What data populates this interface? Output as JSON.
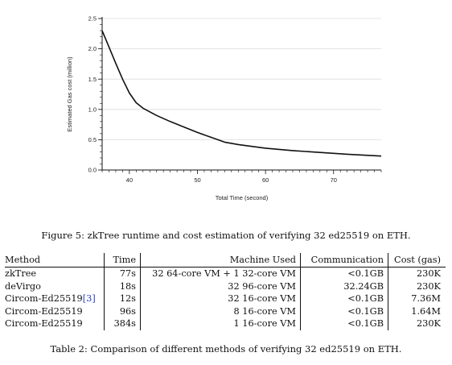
{
  "figure": {
    "caption": "Figure 5: zkTree runtime and cost estimation of verifying 32 ed25519 on ETH."
  },
  "chart_data": {
    "type": "line",
    "xlabel": "Total Time (second)",
    "ylabel": "Estimated Gas cost (million)",
    "xlim": [
      36,
      77
    ],
    "ylim": [
      0,
      2.5
    ],
    "x_ticks": [
      40,
      50,
      60,
      70
    ],
    "y_ticks": [
      "0.0",
      "0.5",
      "1.0",
      "1.5",
      "2.0",
      "2.5"
    ],
    "grid": true,
    "series": [
      {
        "x": [
          36,
          37,
          38,
          39,
          40,
          41,
          42,
          44,
          46,
          48,
          50,
          52,
          54,
          56,
          58,
          60,
          64,
          68,
          72,
          77
        ],
        "y": [
          2.3,
          2.03,
          1.76,
          1.5,
          1.27,
          1.11,
          1.02,
          0.9,
          0.8,
          0.71,
          0.62,
          0.54,
          0.46,
          0.42,
          0.39,
          0.36,
          0.32,
          0.29,
          0.26,
          0.23
        ]
      }
    ]
  },
  "table": {
    "caption": "Table 2: Comparison of different methods of verifying 32 ed25519 on ETH.",
    "headers": {
      "method": "Method",
      "time": "Time",
      "machine": "Machine Used",
      "communication": "Communication",
      "cost": "Cost (gas)"
    },
    "rows": [
      {
        "method": "zkTree",
        "cite": "",
        "time": "77s",
        "machine": "32 64-core VM + 1 32-core VM",
        "communication": "<0.1GB",
        "cost": "230K"
      },
      {
        "method": "deVirgo",
        "cite": "",
        "time": "18s",
        "machine": "32 96-core VM",
        "communication": "32.24GB",
        "cost": "230K"
      },
      {
        "method": "Circom-Ed25519",
        "cite": "[3]",
        "time": "12s",
        "machine": "32 16-core VM",
        "communication": "<0.1GB",
        "cost": "7.36M"
      },
      {
        "method": "Circom-Ed25519",
        "cite": "",
        "time": "96s",
        "machine": "8 16-core VM",
        "communication": "<0.1GB",
        "cost": "1.64M"
      },
      {
        "method": "Circom-Ed25519",
        "cite": "",
        "time": "384s",
        "machine": "1 16-core VM",
        "communication": "<0.1GB",
        "cost": "230K"
      }
    ]
  }
}
